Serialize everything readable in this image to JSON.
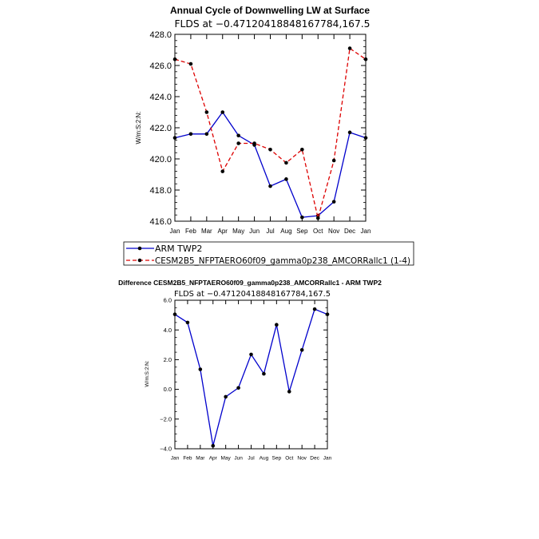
{
  "chart_data": [
    {
      "type": "line",
      "title": "Annual Cycle of Downwelling LW at Surface",
      "subtitle": "FLDS at −0.47120418848167784,167.5",
      "ylabel": "W/m:S:2:N:",
      "ylim": [
        416.0,
        428.0
      ],
      "yticks": [
        "416.0",
        "418.0",
        "420.0",
        "422.0",
        "424.0",
        "426.0",
        "428.0"
      ],
      "categories": [
        "Jan",
        "Feb",
        "Mar",
        "Apr",
        "May",
        "Jun",
        "Jul",
        "Aug",
        "Sep",
        "Oct",
        "Nov",
        "Dec",
        "Jan"
      ],
      "series": [
        {
          "name": "ARM TWP2",
          "color": "#0000cc",
          "dashed": false,
          "values": [
            421.35,
            421.6,
            421.6,
            423.0,
            421.5,
            420.9,
            418.25,
            418.7,
            416.25,
            416.35,
            417.25,
            421.7,
            421.35
          ]
        },
        {
          "name": "CESM2B5_NFPTAERO60f09_gamma0p238_AMCORRallc1 (1-4)",
          "color": "#dd0000",
          "dashed": true,
          "values": [
            426.4,
            426.1,
            423.0,
            419.2,
            421.0,
            421.0,
            420.6,
            419.75,
            420.6,
            416.2,
            419.9,
            427.1,
            426.4
          ]
        }
      ],
      "legend_position": "bottom"
    },
    {
      "type": "line",
      "title": "Difference CESM2B5_NFPTAERO60f09_gamma0p238_AMCORRallc1 - ARM TWP2",
      "subtitle": "FLDS at −0.47120418848167784,167.5",
      "ylabel": "W/m:S:2:N:",
      "ylim": [
        -4.0,
        6.0
      ],
      "yticks": [
        "−4.0",
        "−2.0",
        "0.0",
        "2.0",
        "4.0",
        "6.0"
      ],
      "categories": [
        "Jan",
        "Feb",
        "Mar",
        "Apr",
        "May",
        "Jun",
        "Jul",
        "Aug",
        "Sep",
        "Oct",
        "Nov",
        "Dec",
        "Jan"
      ],
      "series": [
        {
          "color": "#0000cc",
          "dashed": false,
          "values": [
            5.05,
            4.5,
            1.35,
            -3.8,
            -0.5,
            0.1,
            2.35,
            1.05,
            4.35,
            -0.15,
            2.65,
            5.4,
            5.05
          ]
        }
      ]
    }
  ]
}
